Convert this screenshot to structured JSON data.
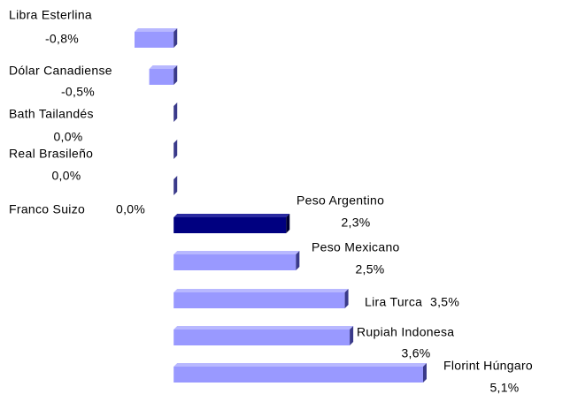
{
  "chart_data": {
    "type": "bar",
    "orientation": "horizontal",
    "categories": [
      "Libra Esterlina",
      "Dólar Canadiense",
      "Bath Tailandés",
      "Real Brasileño",
      "Franco Suizo",
      "Peso Argentino",
      "Peso Mexicano",
      "Lira Turca",
      "Rupiah Indonesa",
      "Florint Húngaro"
    ],
    "values": [
      -0.8,
      -0.5,
      0.0,
      0.0,
      0.0,
      2.3,
      2.5,
      3.5,
      3.6,
      5.1
    ],
    "value_labels": [
      "-0,8%",
      "-0,5%",
      "0,0%",
      "0,0%",
      "0,0%",
      "2,3%",
      "2,5%",
      "3,5%",
      "3,6%",
      "5,1%"
    ],
    "colors": [
      "#9999ff",
      "#9999ff",
      "#9999ff",
      "#9999ff",
      "#9999ff",
      "#000080",
      "#9999ff",
      "#9999ff",
      "#9999ff",
      "#9999ff"
    ]
  }
}
